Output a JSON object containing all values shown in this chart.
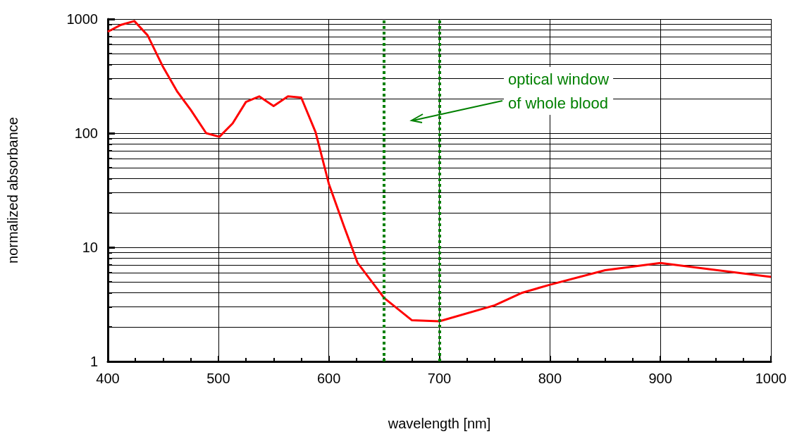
{
  "chart_data": {
    "type": "line",
    "xlabel": "wavelength [nm]",
    "ylabel": "normalized absorbance",
    "x": [
      400,
      412,
      424,
      436,
      450,
      463,
      475,
      489,
      501,
      513,
      525,
      537,
      550,
      563,
      575,
      588,
      600,
      614,
      626,
      650,
      675,
      700,
      750,
      775,
      800,
      850,
      900,
      1000
    ],
    "series": [
      {
        "color": "#ff0000",
        "values": [
          774,
          890,
          960,
          720,
          380,
          230,
          160,
          100,
          93,
          122,
          188,
          210,
          173,
          210,
          205,
          102,
          36,
          15,
          7.3,
          3.6,
          2.3,
          2.25,
          3.1,
          4.0,
          4.7,
          6.3,
          7.3,
          5.5
        ]
      }
    ],
    "xlim": [
      400,
      1000
    ],
    "xticks": [
      400,
      500,
      600,
      700,
      800,
      900,
      1000
    ],
    "ylim": [
      1,
      1000
    ],
    "yticks": [
      1,
      10,
      100,
      1000
    ],
    "log": "y",
    "grid": true,
    "marker": "none",
    "line_style": "solid",
    "ref_lines": [
      {
        "axis": "x",
        "value": 650,
        "color": "#008000",
        "line_style": "dotted"
      },
      {
        "axis": "x",
        "value": 700,
        "color": "#008000",
        "line_style": "dotted"
      }
    ],
    "annotations": [
      "optical window\nof whole blood"
    ]
  }
}
